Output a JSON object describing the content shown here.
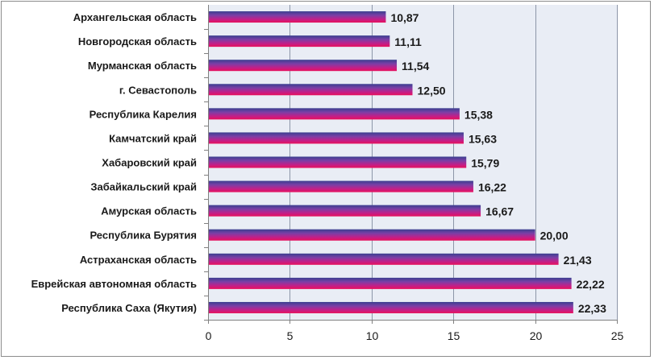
{
  "chart_data": {
    "type": "bar",
    "orientation": "horizontal",
    "categories": [
      "Архангельская область",
      "Новгородская область",
      "Мурманская область",
      "г. Севастополь",
      "Республика Карелия",
      "Камчатский край",
      "Хабаровский край",
      "Забайкальский край",
      "Амурская область",
      "Республика Бурятия",
      "Астраханская область",
      "Еврейская автономная область",
      "Республика Саха (Якутия)"
    ],
    "values": [
      10.87,
      11.11,
      11.54,
      12.5,
      15.38,
      15.63,
      15.79,
      16.22,
      16.67,
      20.0,
      21.43,
      22.22,
      22.33
    ],
    "value_labels": [
      "10,87",
      "11,11",
      "11,54",
      "12,50",
      "15,38",
      "15,63",
      "15,79",
      "16,22",
      "16,67",
      "20,00",
      "21,43",
      "22,22",
      "22,33"
    ],
    "xticks": [
      0,
      5,
      10,
      15,
      20,
      25
    ],
    "xlim": [
      0,
      25
    ],
    "grid": true,
    "legend": "none",
    "colors": {
      "bar_top": "#3a3f8f",
      "bar_upper": "#7a3fa6",
      "bar_middle": "#c0208a",
      "bar_bottom": "#e8105c",
      "plot_bg": "#e9edf5",
      "gridline": "#8d96a8"
    }
  }
}
